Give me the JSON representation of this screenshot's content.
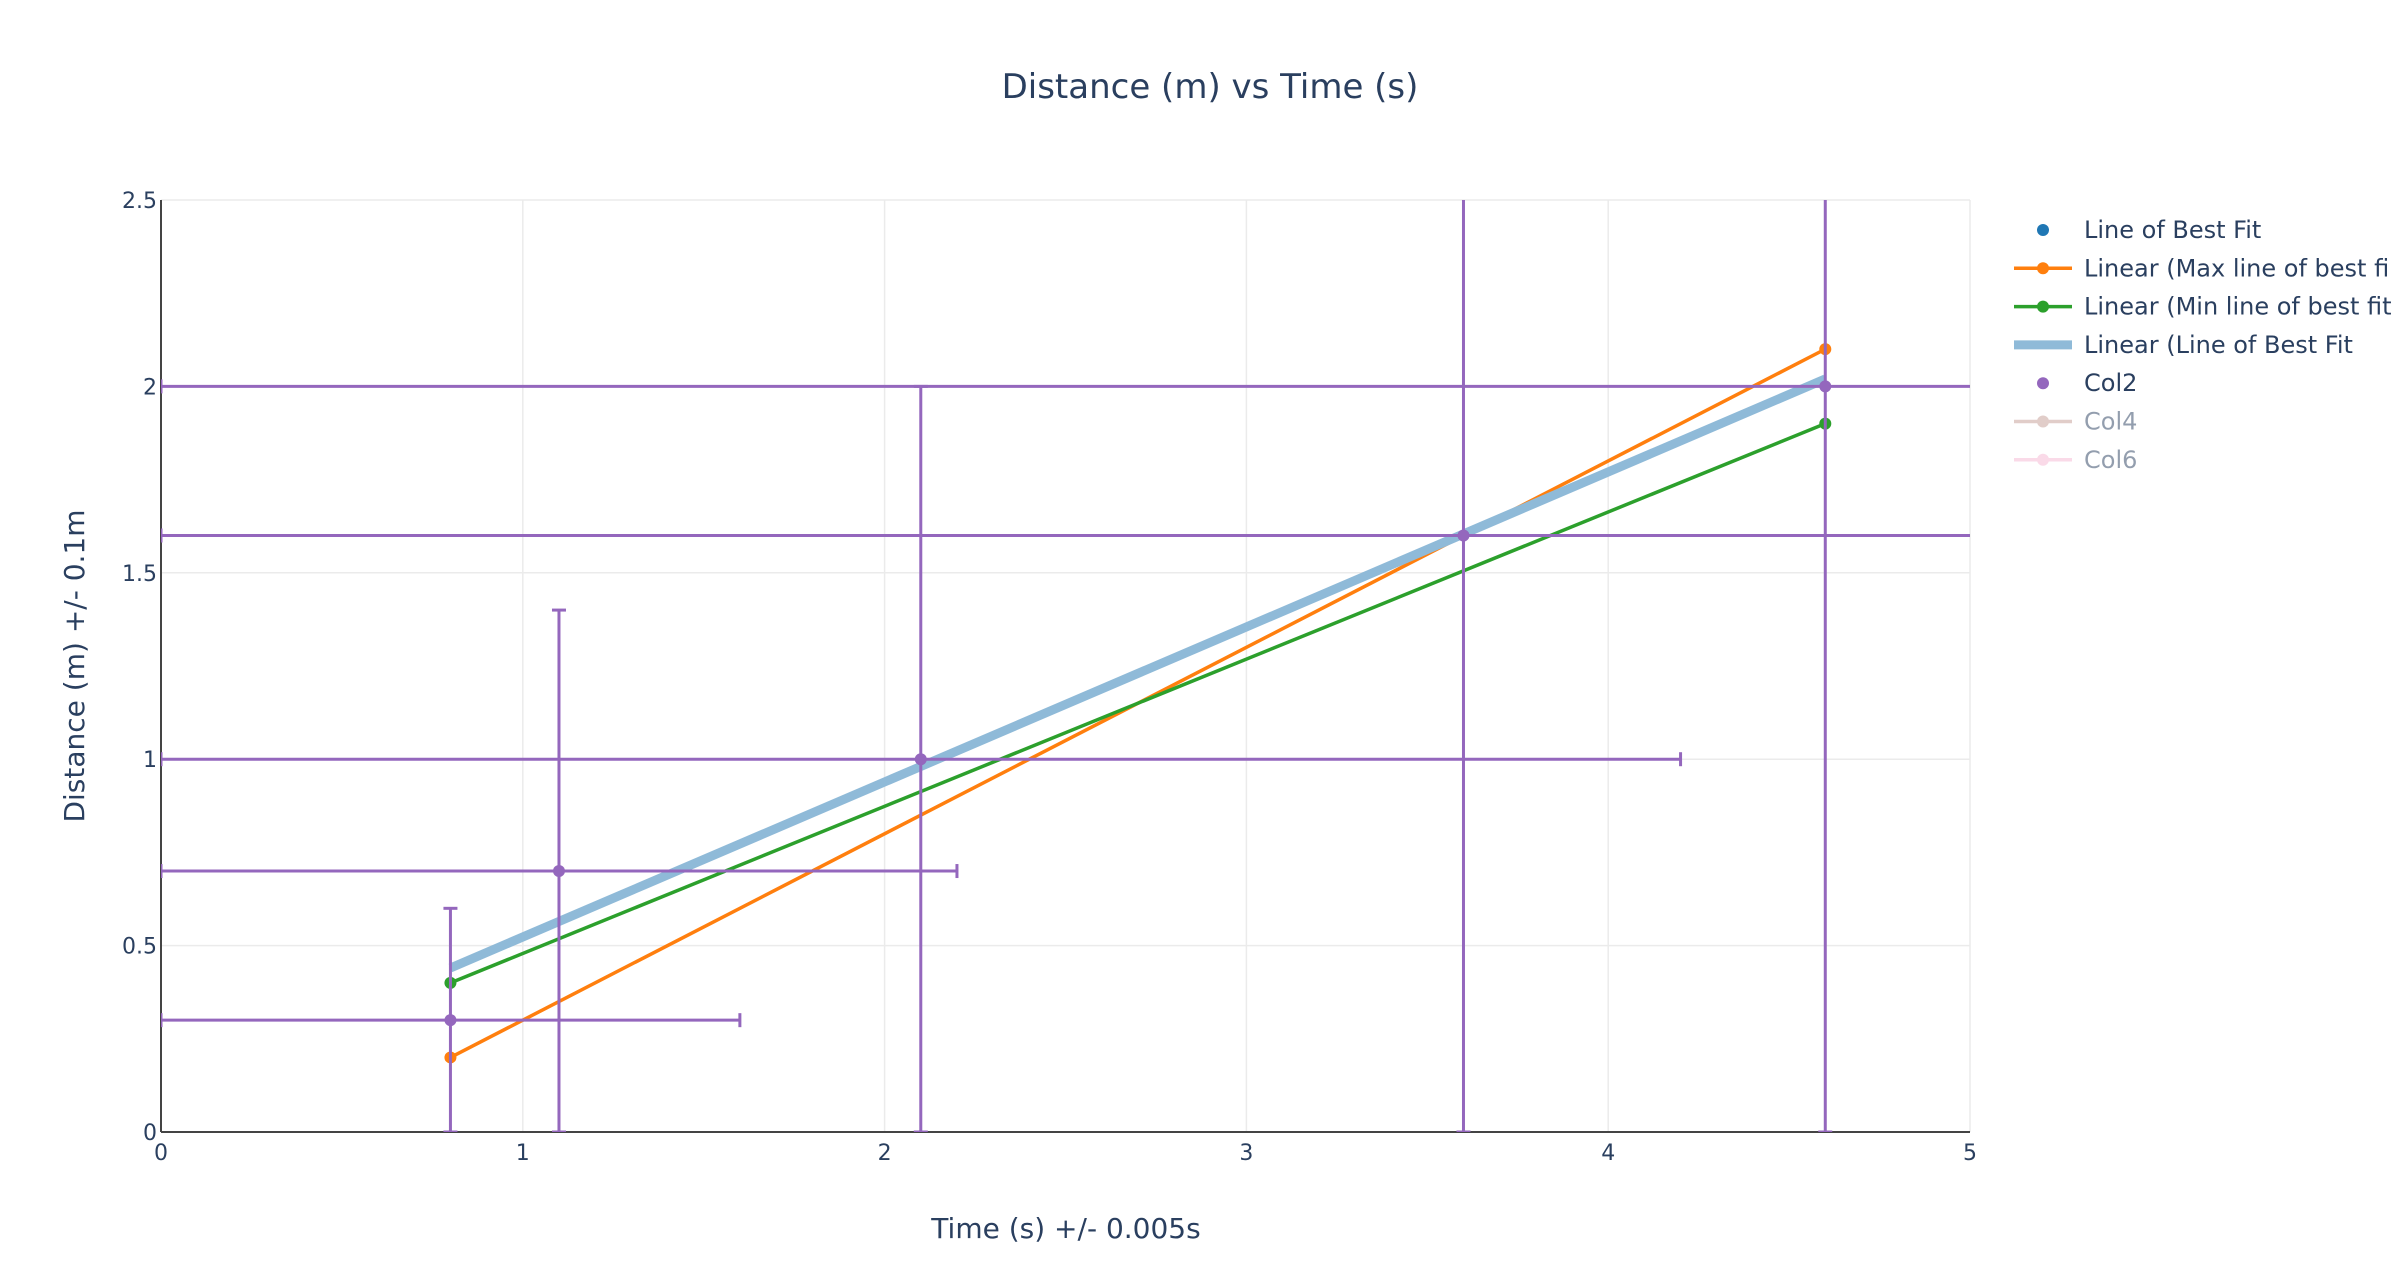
{
  "chart_data": {
    "type": "scatter",
    "title": "Distance (m) vs Time (s)",
    "xlabel": "Time (s) +/- 0.005s",
    "ylabel": "Distance (m) +/- 0.1m",
    "xlim": [
      0,
      5
    ],
    "ylim": [
      0,
      2.5
    ],
    "x_ticks": [
      "0",
      "1",
      "2",
      "3",
      "4",
      "5"
    ],
    "y_ticks": [
      "0",
      "0.5",
      "1",
      "1.5",
      "2",
      "2.5"
    ],
    "grid": true,
    "legend_position": "right",
    "series": [
      {
        "name": "Line of Best Fit",
        "mode": "markers",
        "color": "#1f77b4",
        "visible": true,
        "x": [],
        "y": []
      },
      {
        "name": "Linear (Max line of best fi",
        "mode": "lines+markers",
        "color": "#ff7f0e",
        "visible": true,
        "x": [
          0.8,
          4.6
        ],
        "y": [
          0.2,
          2.1
        ]
      },
      {
        "name": "Linear (Min line of best fit",
        "mode": "lines+markers",
        "color": "#2ca02c",
        "visible": true,
        "x": [
          0.8,
          4.6
        ],
        "y": [
          0.4,
          1.9
        ]
      },
      {
        "name": "Linear (Line of Best Fit",
        "mode": "lines",
        "color": "#8fbad8",
        "visible": true,
        "thick": true,
        "x": [
          0.8,
          4.6
        ],
        "y": [
          0.44,
          2.02
        ]
      },
      {
        "name": "Col2",
        "mode": "markers",
        "color": "#9467bd",
        "visible": true,
        "x": [
          0.8,
          1.1,
          2.1,
          3.6,
          4.6
        ],
        "y": [
          0.3,
          0.7,
          1.0,
          1.6,
          2.0
        ],
        "error_x": [
          0.8,
          1.1,
          2.1,
          3.6,
          4.6
        ],
        "error_y": [
          0.3,
          0.7,
          1.0,
          1.6,
          2.0
        ]
      },
      {
        "name": "Col4",
        "mode": "lines+markers",
        "color": "#c49c94",
        "visible": false,
        "x": [],
        "y": []
      },
      {
        "name": "Col6",
        "mode": "lines+markers",
        "color": "#f7b6d2",
        "visible": false,
        "x": [],
        "y": []
      }
    ]
  }
}
